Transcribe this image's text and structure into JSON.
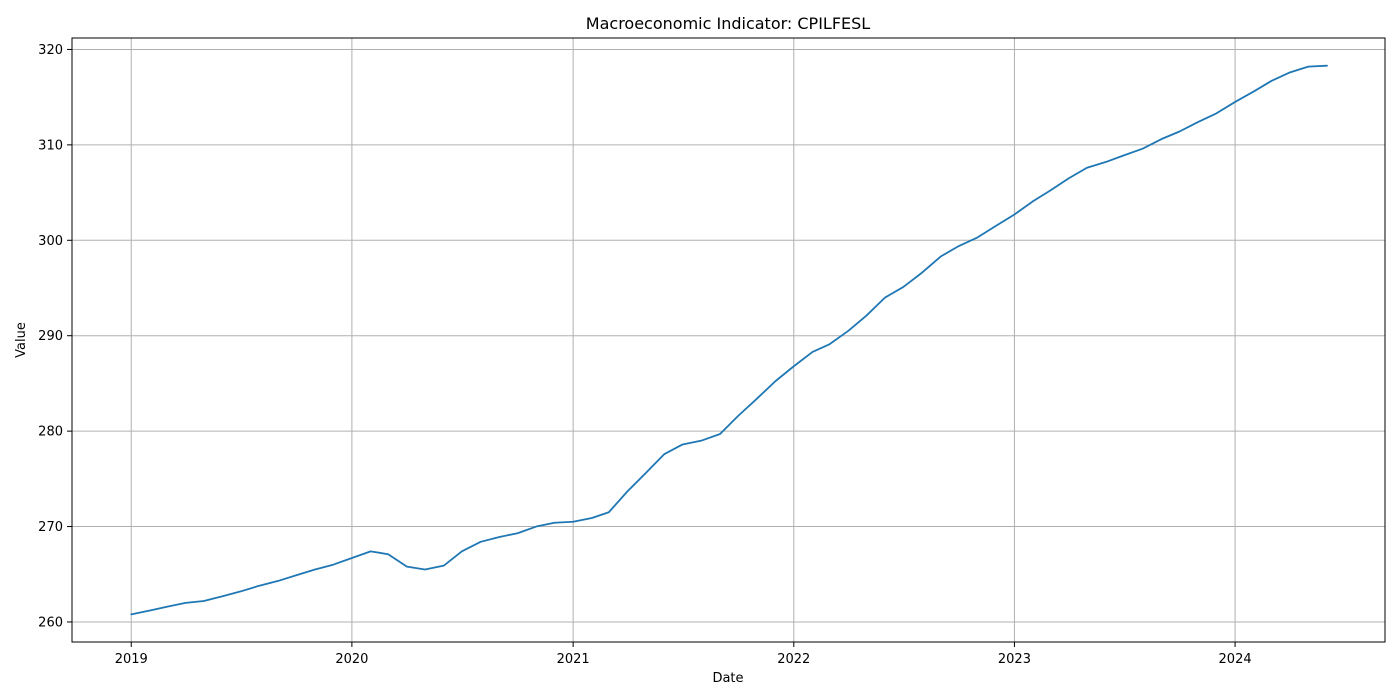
{
  "chart_data": {
    "type": "line",
    "title": "Macroeconomic Indicator: CPILFESL",
    "xlabel": "Date",
    "ylabel": "Value",
    "x_ticks": [
      "2019",
      "2020",
      "2021",
      "2022",
      "2023",
      "2024"
    ],
    "y_ticks": [
      260,
      270,
      280,
      290,
      300,
      310,
      320
    ],
    "ylim": [
      257.9,
      321.2
    ],
    "xlim": [
      "2018-09-25",
      "2024-09-05"
    ],
    "grid": true,
    "line_color": "#1f77b4",
    "series": [
      {
        "x": [
          "2019-01-01",
          "2019-02-01",
          "2019-03-01",
          "2019-04-01",
          "2019-05-01",
          "2019-06-01",
          "2019-07-01",
          "2019-08-01",
          "2019-09-01",
          "2019-10-01",
          "2019-11-01",
          "2019-12-01",
          "2020-01-01",
          "2020-02-01",
          "2020-03-01",
          "2020-04-01",
          "2020-05-01",
          "2020-06-01",
          "2020-07-01",
          "2020-08-01",
          "2020-09-01",
          "2020-10-01",
          "2020-11-01",
          "2020-12-01",
          "2021-01-01",
          "2021-02-01",
          "2021-03-01",
          "2021-04-01",
          "2021-05-01",
          "2021-06-01",
          "2021-07-01",
          "2021-08-01",
          "2021-09-01",
          "2021-10-01",
          "2021-11-01",
          "2021-12-01",
          "2022-01-01",
          "2022-02-01",
          "2022-03-01",
          "2022-04-01",
          "2022-05-01",
          "2022-06-01",
          "2022-07-01",
          "2022-08-01",
          "2022-09-01",
          "2022-10-01",
          "2022-11-01",
          "2022-12-01",
          "2023-01-01",
          "2023-02-01",
          "2023-03-01",
          "2023-04-01",
          "2023-05-01",
          "2023-06-01",
          "2023-07-01",
          "2023-08-01",
          "2023-09-01",
          "2023-10-01",
          "2023-11-01",
          "2023-12-01",
          "2024-01-01",
          "2024-02-01",
          "2024-03-01",
          "2024-04-01",
          "2024-05-01",
          "2024-06-01"
        ],
        "values": [
          260.8,
          261.2,
          261.6,
          262.0,
          262.2,
          262.7,
          263.2,
          263.8,
          264.3,
          264.9,
          265.5,
          266.0,
          266.7,
          267.4,
          267.1,
          265.8,
          265.5,
          265.9,
          267.4,
          268.4,
          268.9,
          269.3,
          270.0,
          270.4,
          270.5,
          270.9,
          271.5,
          273.7,
          275.6,
          277.6,
          278.6,
          279.0,
          279.7,
          281.6,
          283.4,
          285.2,
          286.8,
          288.3,
          289.1,
          290.5,
          292.1,
          294.0,
          295.1,
          296.6,
          298.3,
          299.4,
          300.3,
          301.5,
          302.7,
          304.1,
          305.2,
          306.5,
          307.6,
          308.2,
          308.9,
          309.6,
          310.6,
          311.4,
          312.4,
          313.3,
          314.5,
          315.6,
          316.7,
          317.6,
          318.2,
          318.3
        ]
      }
    ]
  }
}
